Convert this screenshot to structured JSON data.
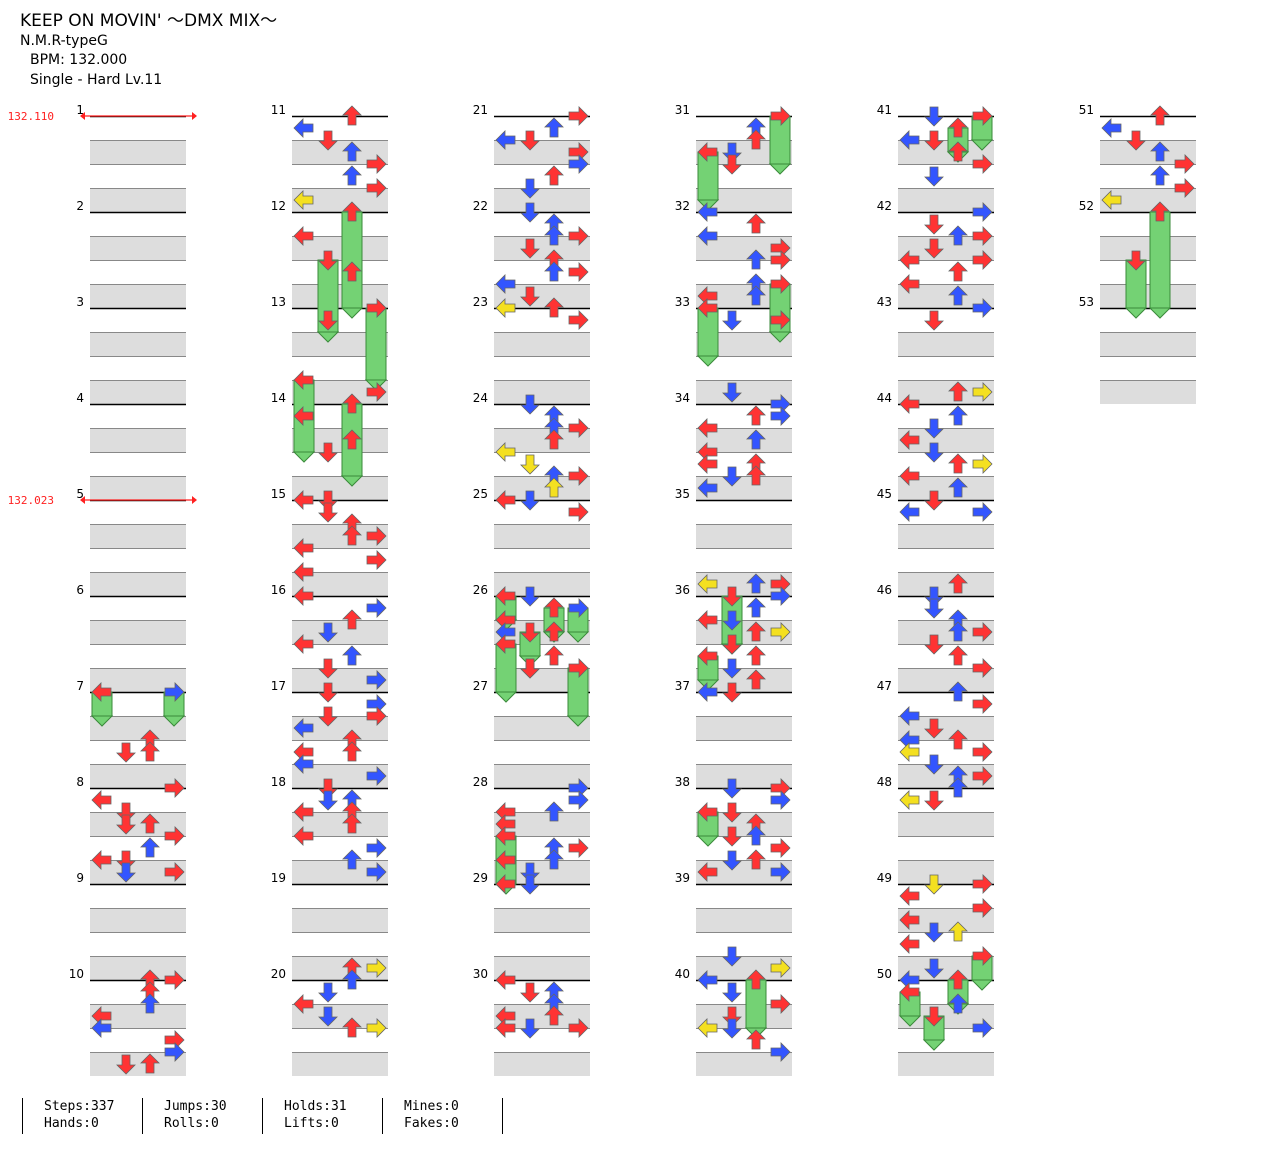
{
  "song": {
    "title": "KEEP ON MOVIN' ～DMX MIX～",
    "artist": "N.M.R-typeG",
    "bpm_label": "BPM: 132.000",
    "difficulty": "Single - Hard  Lv.11"
  },
  "bpm_changes": [
    {
      "measure": 1,
      "label": "132.110"
    },
    {
      "measure": 5,
      "label": "132.023"
    }
  ],
  "colors": {
    "left": "#ff3333",
    "down": "#ff3333",
    "up": "#ff3333",
    "right": "#ff3333",
    "blue": "#3355ff",
    "yellow": "#f4e020",
    "hold": "#74d274",
    "band": "#dddddd"
  },
  "measures": 53,
  "notes": {
    "7": [
      [
        0,
        0,
        "r",
        1
      ],
      [
        0,
        3,
        "b",
        1
      ],
      [
        4,
        2,
        "r"
      ],
      [
        5,
        1,
        "r"
      ],
      [
        5,
        2,
        "r"
      ]
    ],
    "8": [
      [
        0,
        3,
        "r"
      ],
      [
        1,
        0,
        "r"
      ],
      [
        2,
        1,
        "r"
      ],
      [
        3,
        1,
        "r"
      ],
      [
        3,
        2,
        "r"
      ],
      [
        4,
        3,
        "r"
      ],
      [
        5,
        2,
        "b"
      ],
      [
        6,
        0,
        "r"
      ],
      [
        6,
        1,
        "r"
      ],
      [
        7,
        1,
        "b"
      ],
      [
        7,
        3,
        "r"
      ]
    ],
    "10": [
      [
        0,
        2,
        "r"
      ],
      [
        0,
        3,
        "r"
      ],
      [
        1,
        2,
        "r"
      ],
      [
        2,
        2,
        "b"
      ],
      [
        3,
        0,
        "r"
      ],
      [
        4,
        0,
        "b"
      ],
      [
        5,
        3,
        "r"
      ],
      [
        6,
        3,
        "b"
      ],
      [
        7,
        1,
        "r"
      ],
      [
        7,
        2,
        "r"
      ]
    ],
    "11": [
      [
        0,
        2,
        "r"
      ],
      [
        1,
        0,
        "b"
      ],
      [
        2,
        1,
        "r"
      ],
      [
        3,
        2,
        "b"
      ],
      [
        4,
        3,
        "r"
      ],
      [
        5,
        2,
        "b"
      ],
      [
        6,
        3,
        "r"
      ],
      [
        7,
        0,
        "y"
      ]
    ],
    "12": [
      [
        0,
        2,
        "r",
        4
      ],
      [
        2,
        0,
        "r"
      ],
      [
        4,
        1,
        "r",
        3
      ],
      [
        5,
        2,
        "r"
      ],
      [
        8,
        3,
        "r",
        3
      ],
      [
        9,
        1,
        "r"
      ]
    ],
    "14": [
      [
        -2,
        0,
        "r",
        3
      ],
      [
        -1,
        3,
        "r"
      ],
      [
        0,
        2,
        "r",
        3
      ],
      [
        1,
        0,
        "r"
      ],
      [
        3,
        2,
        "r"
      ],
      [
        4,
        1,
        "r"
      ]
    ],
    "15": [
      [
        0,
        0,
        "r"
      ],
      [
        0,
        1,
        "r"
      ],
      [
        1,
        1,
        "r"
      ],
      [
        2,
        2,
        "r"
      ],
      [
        3,
        2,
        "r"
      ],
      [
        3,
        3,
        "r"
      ],
      [
        4,
        0,
        "r"
      ],
      [
        5,
        3,
        "r"
      ],
      [
        6,
        0,
        "r"
      ]
    ],
    "16": [
      [
        0,
        0,
        "r"
      ],
      [
        1,
        3,
        "b"
      ],
      [
        2,
        2,
        "r"
      ],
      [
        3,
        1,
        "b"
      ],
      [
        4,
        0,
        "r"
      ],
      [
        5,
        2,
        "b"
      ],
      [
        6,
        1,
        "r"
      ],
      [
        7,
        3,
        "b"
      ]
    ],
    "17": [
      [
        0,
        1,
        "r"
      ],
      [
        1,
        3,
        "b"
      ],
      [
        2,
        1,
        "r"
      ],
      [
        2,
        3,
        "r"
      ],
      [
        3,
        0,
        "b"
      ],
      [
        4,
        2,
        "r"
      ],
      [
        5,
        0,
        "r"
      ],
      [
        5,
        2,
        "r"
      ],
      [
        6,
        0,
        "b"
      ],
      [
        7,
        3,
        "b"
      ]
    ],
    "18": [
      [
        0,
        1,
        "r"
      ],
      [
        1,
        1,
        "b"
      ],
      [
        1,
        2,
        "b"
      ],
      [
        2,
        0,
        "r"
      ],
      [
        2,
        2,
        "r"
      ],
      [
        3,
        2,
        "r"
      ],
      [
        4,
        0,
        "r"
      ],
      [
        5,
        3,
        "b"
      ],
      [
        6,
        2,
        "b"
      ],
      [
        7,
        3,
        "b"
      ]
    ],
    "20": [
      [
        -1,
        2,
        "r"
      ],
      [
        -1,
        3,
        "y"
      ],
      [
        0,
        2,
        "b"
      ],
      [
        1,
        1,
        "b"
      ],
      [
        2,
        0,
        "r"
      ],
      [
        3,
        1,
        "b"
      ],
      [
        4,
        2,
        "r"
      ],
      [
        4,
        3,
        "y"
      ]
    ],
    "21": [
      [
        0,
        3,
        "r"
      ],
      [
        1,
        2,
        "b"
      ],
      [
        2,
        0,
        "b"
      ],
      [
        2,
        1,
        "r"
      ],
      [
        3,
        3,
        "r"
      ],
      [
        4,
        3,
        "b"
      ],
      [
        5,
        2,
        "r"
      ],
      [
        6,
        1,
        "b"
      ]
    ],
    "22": [
      [
        0,
        1,
        "b"
      ],
      [
        1,
        2,
        "b"
      ],
      [
        2,
        3,
        "r"
      ],
      [
        2,
        2,
        "b"
      ],
      [
        3,
        1,
        "r"
      ],
      [
        4,
        2,
        "r"
      ],
      [
        5,
        2,
        "b"
      ],
      [
        5,
        3,
        "r"
      ],
      [
        6,
        0,
        "b"
      ],
      [
        7,
        1,
        "r"
      ],
      [
        8,
        0,
        "y"
      ],
      [
        8,
        2,
        "r"
      ],
      [
        9,
        3,
        "r"
      ]
    ],
    "24": [
      [
        0,
        1,
        "b"
      ],
      [
        1,
        2,
        "b"
      ],
      [
        2,
        2,
        "b"
      ],
      [
        2,
        3,
        "r"
      ],
      [
        3,
        2,
        "r"
      ],
      [
        4,
        0,
        "y"
      ],
      [
        5,
        1,
        "y"
      ],
      [
        6,
        2,
        "b"
      ],
      [
        6,
        3,
        "r"
      ],
      [
        7,
        2,
        "y"
      ],
      [
        8,
        1,
        "b"
      ],
      [
        8,
        0,
        "r"
      ],
      [
        9,
        3,
        "r"
      ]
    ],
    "26": [
      [
        0,
        0,
        "r",
        1
      ],
      [
        0,
        1,
        "b"
      ],
      [
        1,
        2,
        "r",
        1
      ],
      [
        1,
        3,
        "b",
        1
      ],
      [
        2,
        0,
        "r"
      ],
      [
        3,
        2,
        "r"
      ],
      [
        3,
        1,
        "r",
        1
      ],
      [
        3,
        0,
        "b"
      ],
      [
        4,
        0,
        "r",
        2
      ],
      [
        5,
        2,
        "r"
      ],
      [
        6,
        1,
        "b"
      ],
      [
        6,
        1,
        "r"
      ],
      [
        6,
        3,
        "r",
        2
      ]
    ],
    "28": [
      [
        0,
        3,
        "b"
      ],
      [
        1,
        3,
        "b"
      ],
      [
        2,
        0,
        "r"
      ],
      [
        2,
        2,
        "b"
      ],
      [
        3,
        0,
        "r"
      ],
      [
        4,
        0,
        "r",
        2
      ],
      [
        5,
        3,
        "r"
      ],
      [
        5,
        2,
        "b"
      ],
      [
        6,
        0,
        "r"
      ],
      [
        6,
        2,
        "b"
      ],
      [
        7,
        1,
        "b"
      ],
      [
        8,
        0,
        "r"
      ],
      [
        8,
        1,
        "b"
      ]
    ],
    "30": [
      [
        0,
        0,
        "r"
      ],
      [
        1,
        1,
        "r"
      ],
      [
        1,
        2,
        "b"
      ],
      [
        2,
        2,
        "b"
      ],
      [
        3,
        0,
        "r"
      ],
      [
        3,
        2,
        "r"
      ],
      [
        4,
        1,
        "b"
      ],
      [
        4,
        0,
        "r"
      ],
      [
        4,
        3,
        "r"
      ]
    ],
    "31": [
      [
        0,
        3,
        "r",
        2
      ],
      [
        1,
        2,
        "b"
      ],
      [
        2,
        2,
        "r"
      ],
      [
        3,
        0,
        "r",
        2
      ],
      [
        3,
        1,
        "b"
      ],
      [
        4,
        1,
        "r"
      ]
    ],
    "32": [
      [
        0,
        0,
        "b"
      ],
      [
        1,
        2,
        "r"
      ],
      [
        2,
        0,
        "b"
      ],
      [
        3,
        3,
        "r"
      ],
      [
        4,
        2,
        "b"
      ],
      [
        4,
        3,
        "r"
      ],
      [
        6,
        3,
        "r",
        2
      ],
      [
        6,
        2,
        "b"
      ],
      [
        7,
        0,
        "r"
      ],
      [
        7,
        2,
        "b"
      ],
      [
        8,
        0,
        "r",
        2
      ],
      [
        9,
        1,
        "b"
      ],
      [
        9,
        3,
        "r"
      ]
    ],
    "34": [
      [
        -1,
        1,
        "b"
      ],
      [
        0,
        3,
        "b"
      ],
      [
        1,
        2,
        "r"
      ],
      [
        1,
        3,
        "b"
      ],
      [
        2,
        0,
        "r"
      ],
      [
        3,
        2,
        "b"
      ],
      [
        4,
        0,
        "r"
      ],
      [
        5,
        0,
        "r"
      ],
      [
        5,
        2,
        "r"
      ],
      [
        6,
        1,
        "b"
      ],
      [
        6,
        2,
        "r"
      ],
      [
        7,
        0,
        "b"
      ]
    ],
    "36": [
      [
        -1,
        0,
        "y"
      ],
      [
        -1,
        2,
        "b"
      ],
      [
        -1,
        3,
        "r"
      ],
      [
        0,
        1,
        "r",
        2
      ],
      [
        0,
        3,
        "b"
      ],
      [
        1,
        2,
        "b"
      ],
      [
        2,
        0,
        "r"
      ],
      [
        2,
        1,
        "b"
      ],
      [
        3,
        2,
        "r"
      ],
      [
        3,
        3,
        "y"
      ],
      [
        4,
        1,
        "r"
      ],
      [
        5,
        0,
        "r",
        1
      ],
      [
        5,
        2,
        "r"
      ],
      [
        6,
        1,
        "b"
      ],
      [
        7,
        2,
        "r"
      ],
      [
        8,
        0,
        "b"
      ],
      [
        8,
        1,
        "r"
      ]
    ],
    "38": [
      [
        0,
        1,
        "b"
      ],
      [
        0,
        3,
        "r"
      ],
      [
        1,
        3,
        "b"
      ],
      [
        2,
        0,
        "r",
        1
      ],
      [
        2,
        1,
        "r"
      ],
      [
        3,
        2,
        "r"
      ],
      [
        4,
        1,
        "r"
      ],
      [
        4,
        2,
        "b"
      ],
      [
        5,
        3,
        "r"
      ],
      [
        6,
        1,
        "b"
      ],
      [
        6,
        2,
        "r"
      ],
      [
        7,
        0,
        "r"
      ],
      [
        7,
        3,
        "b"
      ]
    ],
    "40": [
      [
        -2,
        1,
        "b"
      ],
      [
        -1,
        3,
        "y"
      ],
      [
        0,
        0,
        "b"
      ],
      [
        0,
        2,
        "r",
        2
      ],
      [
        1,
        1,
        "b"
      ],
      [
        2,
        3,
        "r"
      ],
      [
        3,
        1,
        "r"
      ],
      [
        4,
        0,
        "y"
      ],
      [
        4,
        1,
        "b"
      ],
      [
        5,
        2,
        "r"
      ],
      [
        6,
        3,
        "b"
      ]
    ],
    "41": [
      [
        0,
        1,
        "b"
      ],
      [
        0,
        3,
        "r",
        1
      ],
      [
        1,
        2,
        "r",
        1
      ],
      [
        2,
        0,
        "b"
      ],
      [
        2,
        1,
        "r"
      ],
      [
        3,
        2,
        "r"
      ],
      [
        4,
        3,
        "r"
      ],
      [
        5,
        1,
        "b"
      ]
    ],
    "42": [
      [
        0,
        3,
        "b"
      ],
      [
        1,
        1,
        "r"
      ],
      [
        2,
        2,
        "b"
      ],
      [
        2,
        3,
        "r"
      ],
      [
        3,
        1,
        "r"
      ],
      [
        4,
        0,
        "r"
      ],
      [
        4,
        3,
        "r"
      ],
      [
        5,
        2,
        "r"
      ],
      [
        6,
        0,
        "r"
      ],
      [
        7,
        2,
        "b"
      ],
      [
        8,
        3,
        "b"
      ],
      [
        9,
        1,
        "r"
      ]
    ],
    "44": [
      [
        -1,
        2,
        "r"
      ],
      [
        -1,
        3,
        "y"
      ],
      [
        0,
        0,
        "r"
      ],
      [
        1,
        2,
        "b"
      ],
      [
        2,
        1,
        "b"
      ],
      [
        3,
        0,
        "r"
      ],
      [
        4,
        1,
        "b"
      ],
      [
        5,
        2,
        "r"
      ],
      [
        5,
        3,
        "y"
      ],
      [
        6,
        0,
        "r"
      ],
      [
        7,
        2,
        "b"
      ],
      [
        8,
        1,
        "r"
      ],
      [
        9,
        0,
        "b"
      ],
      [
        9,
        3,
        "b"
      ]
    ],
    "46": [
      [
        0,
        1,
        "b"
      ],
      [
        -1,
        2,
        "r"
      ],
      [
        1,
        1,
        "b"
      ],
      [
        2,
        2,
        "b"
      ],
      [
        3,
        2,
        "b"
      ],
      [
        3,
        3,
        "r"
      ],
      [
        4,
        1,
        "r"
      ],
      [
        5,
        2,
        "r"
      ],
      [
        6,
        3,
        "r"
      ]
    ],
    "47": [
      [
        0,
        2,
        "b"
      ],
      [
        1,
        3,
        "r"
      ],
      [
        2,
        0,
        "b"
      ],
      [
        3,
        1,
        "r"
      ],
      [
        4,
        0,
        "b"
      ],
      [
        4,
        2,
        "r"
      ],
      [
        5,
        0,
        "y"
      ],
      [
        5,
        3,
        "r"
      ],
      [
        6,
        1,
        "b"
      ],
      [
        7,
        2,
        "b"
      ],
      [
        7,
        3,
        "r"
      ],
      [
        8,
        2,
        "b"
      ],
      [
        9,
        1,
        "r"
      ],
      [
        9,
        0,
        "y"
      ]
    ],
    "49": [
      [
        0,
        1,
        "y"
      ],
      [
        0,
        3,
        "r"
      ],
      [
        1,
        0,
        "r"
      ],
      [
        2,
        3,
        "r"
      ],
      [
        3,
        0,
        "r"
      ],
      [
        4,
        1,
        "b"
      ],
      [
        4,
        2,
        "y"
      ],
      [
        5,
        0,
        "r"
      ],
      [
        6,
        3,
        "r",
        1
      ],
      [
        7,
        1,
        "b"
      ],
      [
        8,
        0,
        "b"
      ],
      [
        8,
        2,
        "r",
        1
      ],
      [
        9,
        0,
        "r",
        1
      ],
      [
        10,
        2,
        "b"
      ],
      [
        11,
        1,
        "r",
        1
      ],
      [
        12,
        3,
        "b"
      ]
    ],
    "51": [
      [
        0,
        2,
        "r"
      ],
      [
        1,
        0,
        "b"
      ],
      [
        2,
        1,
        "r"
      ],
      [
        3,
        2,
        "b"
      ],
      [
        4,
        3,
        "r"
      ],
      [
        5,
        2,
        "b"
      ],
      [
        6,
        3,
        "r"
      ],
      [
        7,
        0,
        "y"
      ]
    ],
    "52": [
      [
        0,
        2,
        "r",
        4
      ],
      [
        4,
        1,
        "r",
        2
      ]
    ]
  },
  "stats": {
    "steps": "Steps:337",
    "hands": "Hands:0",
    "jumps": "Jumps:30",
    "rolls": "Rolls:0",
    "holds": "Holds:31",
    "lifts": "Lifts:0",
    "mines": "Mines:0",
    "fakes": "Fakes:0"
  }
}
